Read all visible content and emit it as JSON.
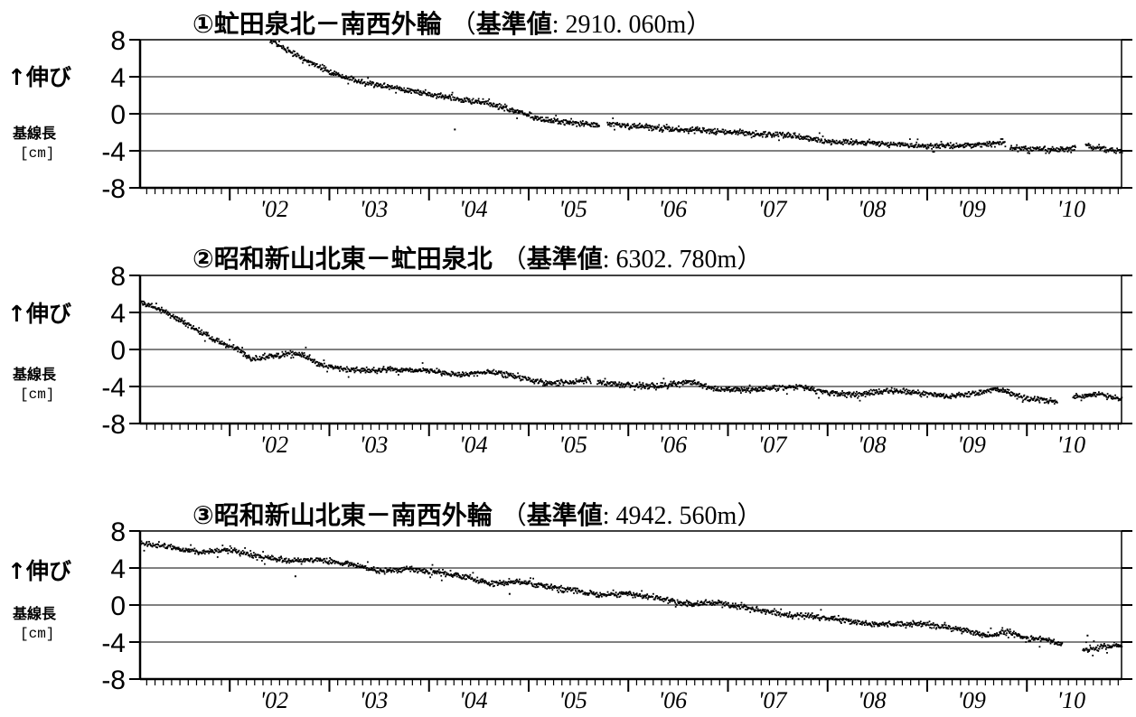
{
  "axis_common": {
    "ylabel_up": "↑伸び",
    "ylabel_name": "基線長",
    "ylabel_unit": "[cm]"
  },
  "chart_data": [
    {
      "type": "scatter",
      "title": "①虻田泉北－南西外輪（基準値: 2910. 060m）",
      "title_main": "①虻田泉北－南西外輪",
      "title_ref_open": "（",
      "title_ref_key": "基準値",
      "title_ref_value": ": 2910. 060m",
      "title_ref_close": "）",
      "xlabel": "",
      "ylabel": "↑伸び 基線長 [cm]",
      "xlim": [
        2001.1,
        2010.95
      ],
      "ylim": [
        -8,
        8
      ],
      "yticks": [
        8,
        4,
        0,
        -4,
        -8
      ],
      "ytick_labels": [
        "8",
        "4",
        "0",
        "-4",
        "-8"
      ],
      "gridlines_y": [
        4,
        0,
        -4
      ],
      "xticks": [
        2002,
        2003,
        2004,
        2005,
        2006,
        2007,
        2008,
        2009,
        2010
      ],
      "xtick_labels": [
        "'02",
        "'03",
        "'04",
        "'05",
        "'06",
        "'07",
        "'08",
        "'09",
        "'10"
      ],
      "marker_color": "#000000",
      "series": [
        {
          "x": [
            2002.4,
            2002.6,
            2002.8,
            2003.0,
            2003.3,
            2003.6,
            2004.0,
            2004.3,
            2004.6,
            2004.9,
            2005.1,
            2005.4,
            2005.65,
            2005.8,
            2006.2,
            2006.5,
            2006.9,
            2007.3,
            2007.6,
            2008.0,
            2008.5,
            2009.0,
            2009.5,
            2009.75,
            2009.85,
            2010.2,
            2010.45,
            2010.6,
            2010.8,
            2010.95
          ],
          "y": [
            8.0,
            6.8,
            5.6,
            4.6,
            3.5,
            3.0,
            2.2,
            1.6,
            1.2,
            0.3,
            -0.5,
            -0.9,
            -1.1,
            -1.0,
            -1.4,
            -1.6,
            -1.8,
            -2.1,
            -2.2,
            -2.9,
            -3.1,
            -3.4,
            -3.3,
            -3.0,
            -3.6,
            -3.8,
            -3.7,
            -3.3,
            -3.8,
            -3.9
          ]
        }
      ],
      "gaps": [
        [
          2005.7,
          2005.78
        ],
        [
          2009.78,
          2009.82
        ],
        [
          2010.48,
          2010.58
        ]
      ],
      "outliers": [
        [
          2004.25,
          -1.6
        ]
      ]
    },
    {
      "type": "scatter",
      "title": "②昭和新山北東－虻田泉北（基準値: 6302. 780m）",
      "title_main": "②昭和新山北東－虻田泉北",
      "title_ref_open": "（",
      "title_ref_key": "基準値",
      "title_ref_value": ": 6302. 780m",
      "title_ref_close": "）",
      "xlabel": "",
      "ylabel": "↑伸び 基線長 [cm]",
      "xlim": [
        2001.1,
        2010.95
      ],
      "ylim": [
        -8,
        8
      ],
      "yticks": [
        8,
        4,
        0,
        -4,
        -8
      ],
      "ytick_labels": [
        "8",
        "4",
        "0",
        "-4",
        "-8"
      ],
      "gridlines_y": [
        4,
        0,
        -4
      ],
      "xticks": [
        2002,
        2003,
        2004,
        2005,
        2006,
        2007,
        2008,
        2009,
        2010
      ],
      "xtick_labels": [
        "'02",
        "'03",
        "'04",
        "'05",
        "'06",
        "'07",
        "'08",
        "'09",
        "'10"
      ],
      "marker_color": "#000000",
      "series": [
        {
          "x": [
            2001.1,
            2001.3,
            2001.6,
            2001.9,
            2002.1,
            2002.2,
            2002.4,
            2002.7,
            2002.9,
            2003.1,
            2003.4,
            2003.7,
            2004.0,
            2004.3,
            2004.6,
            2004.9,
            2005.2,
            2005.4,
            2005.6,
            2005.7,
            2006.0,
            2006.3,
            2006.6,
            2006.9,
            2007.2,
            2007.5,
            2007.7,
            2008.0,
            2008.3,
            2008.6,
            2008.9,
            2009.2,
            2009.5,
            2009.7,
            2009.95,
            2010.2,
            2010.35,
            2010.5,
            2010.7,
            2010.95
          ],
          "y": [
            5.2,
            4.4,
            2.6,
            0.8,
            0.0,
            -1.0,
            -0.6,
            -0.4,
            -1.5,
            -2.0,
            -2.2,
            -2.1,
            -2.2,
            -2.7,
            -2.3,
            -2.9,
            -3.6,
            -3.5,
            -3.2,
            -3.5,
            -3.8,
            -3.9,
            -3.4,
            -4.2,
            -4.3,
            -4.0,
            -3.9,
            -4.6,
            -4.8,
            -4.3,
            -4.6,
            -5.0,
            -4.6,
            -4.2,
            -5.2,
            -5.4,
            -5.8,
            -5.0,
            -4.7,
            -5.3
          ]
        }
      ],
      "gaps": [
        [
          2005.62,
          2005.68
        ],
        [
          2010.3,
          2010.45
        ]
      ],
      "outliers": []
    },
    {
      "type": "scatter",
      "title": "③昭和新山北東－南西外輪（基準値: 4942. 560m）",
      "title_main": "③昭和新山北東－南西外輪",
      "title_ref_open": "（",
      "title_ref_key": "基準値",
      "title_ref_value": ": 4942. 560m",
      "title_ref_close": "）",
      "xlabel": "",
      "ylabel": "↑伸び 基線長 [cm]",
      "xlim": [
        2001.1,
        2010.95
      ],
      "ylim": [
        -8,
        8
      ],
      "yticks": [
        8,
        4,
        0,
        -4,
        -8
      ],
      "ytick_labels": [
        "8",
        "4",
        "0",
        "-4",
        "-8"
      ],
      "gridlines_y": [
        4,
        0,
        -4
      ],
      "xticks": [
        2002,
        2003,
        2004,
        2005,
        2006,
        2007,
        2008,
        2009,
        2010
      ],
      "xtick_labels": [
        "'02",
        "'03",
        "'04",
        "'05",
        "'06",
        "'07",
        "'08",
        "'09",
        "'10"
      ],
      "marker_color": "#000000",
      "series": [
        {
          "x": [
            2001.1,
            2001.4,
            2001.7,
            2002.0,
            2002.3,
            2002.6,
            2002.9,
            2003.2,
            2003.5,
            2003.8,
            2004.1,
            2004.4,
            2004.6,
            2004.9,
            2005.2,
            2005.5,
            2005.7,
            2006.0,
            2006.3,
            2006.6,
            2006.9,
            2007.2,
            2007.5,
            2007.8,
            2008.1,
            2008.4,
            2008.7,
            2009.0,
            2009.3,
            2009.6,
            2009.8,
            2010.0,
            2010.2,
            2010.3,
            2010.6,
            2010.75,
            2010.95
          ],
          "y": [
            6.8,
            6.3,
            5.8,
            6.0,
            5.3,
            4.8,
            5.0,
            4.5,
            3.7,
            4.0,
            3.6,
            3.0,
            2.4,
            2.6,
            2.1,
            1.5,
            1.2,
            1.3,
            0.8,
            0.2,
            0.3,
            -0.3,
            -0.9,
            -1.1,
            -1.5,
            -2.0,
            -1.9,
            -2.0,
            -2.5,
            -3.2,
            -2.8,
            -3.5,
            -3.7,
            -4.0,
            -4.8,
            -4.4,
            -4.3
          ]
        }
      ],
      "gaps": [
        [
          2010.35,
          2010.55
        ]
      ],
      "outliers": [
        [
          2002.65,
          3.2
        ],
        [
          2010.6,
          -3.2
        ],
        [
          2004.8,
          1.3
        ]
      ]
    }
  ]
}
